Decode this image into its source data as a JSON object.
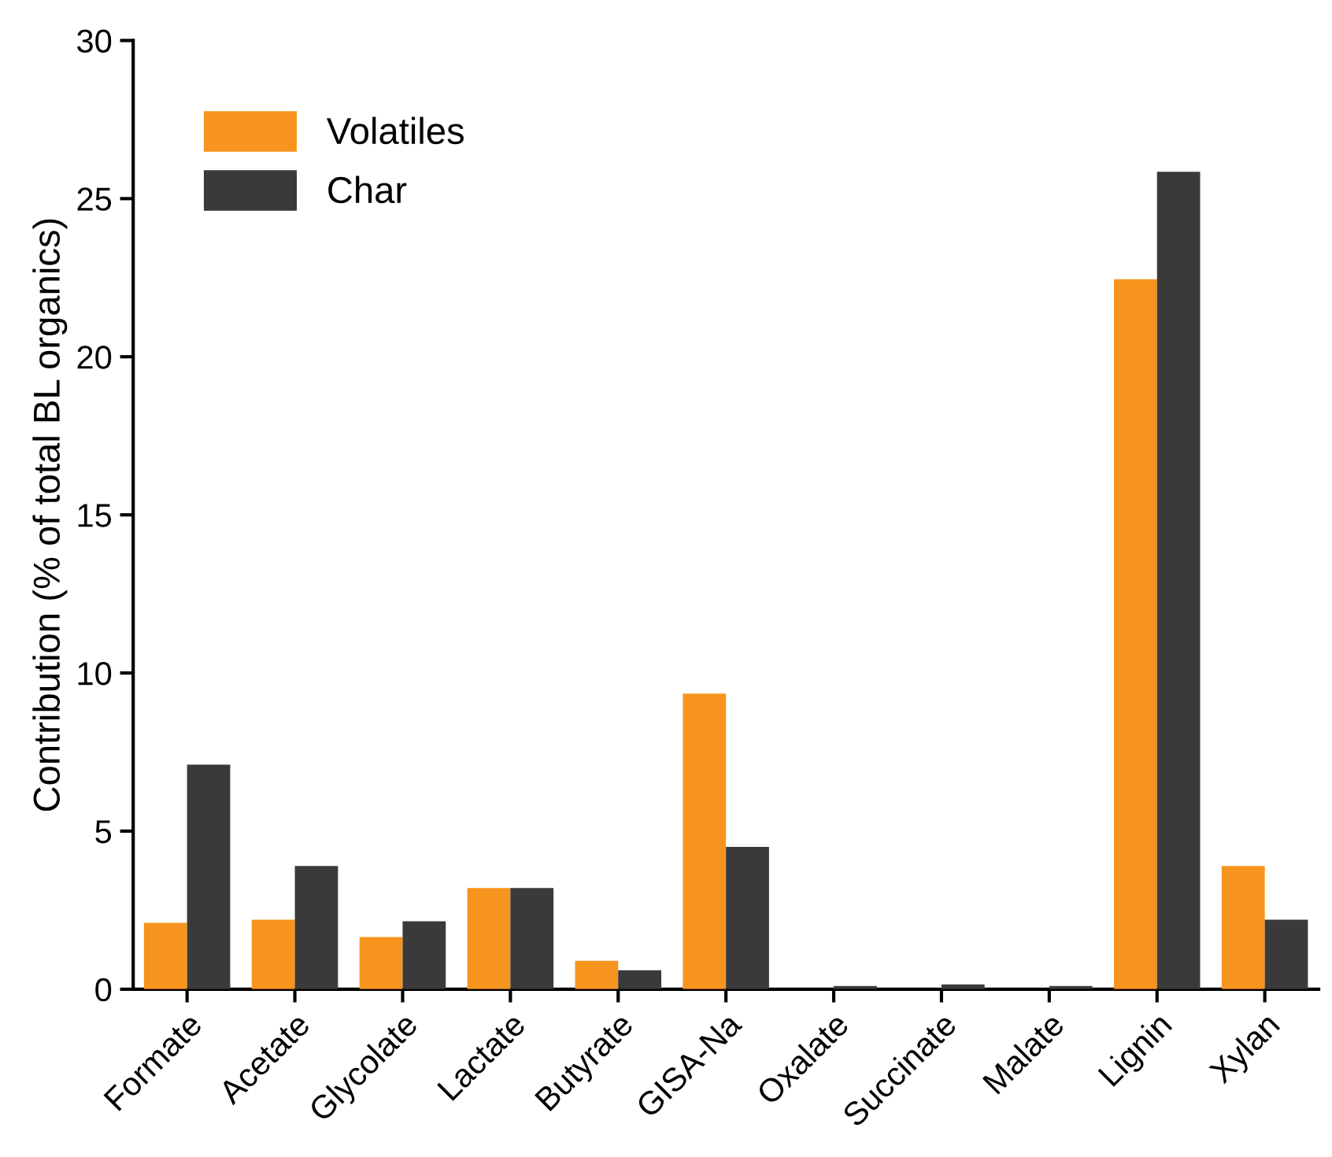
{
  "chart_data": {
    "type": "bar",
    "ylabel": "Contribution (% of total BL organics)",
    "categories": [
      "Formate",
      "Acetate",
      "Glycolate",
      "Lactate",
      "Butyrate",
      "GISA-Na",
      "Oxalate",
      "Succinate",
      "Malate",
      "Lignin",
      "Xylan"
    ],
    "series": [
      {
        "name": "Volatiles",
        "color": "#f7941d",
        "values": [
          2.1,
          2.2,
          1.65,
          3.2,
          0.9,
          9.35,
          0.0,
          null,
          null,
          22.45,
          3.9
        ]
      },
      {
        "name": "Char",
        "color": "#3a3a3a",
        "values": [
          7.1,
          3.9,
          2.15,
          3.2,
          0.6,
          4.5,
          0.1,
          0.15,
          0.1,
          25.85,
          2.2
        ]
      }
    ],
    "ylim": [
      0,
      30
    ],
    "yticks": [
      0,
      5,
      10,
      15,
      20,
      25,
      30
    ],
    "grid": false,
    "legend": "top left"
  }
}
